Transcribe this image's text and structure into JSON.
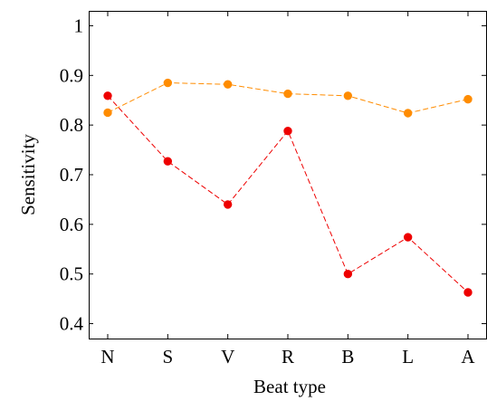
{
  "chart_data": {
    "type": "line",
    "xlabel": "Beat type",
    "ylabel": "Sensitivity",
    "categories": [
      "N",
      "S",
      "V",
      "R",
      "B",
      "L",
      "A"
    ],
    "ylim": [
      0.37,
      1.03
    ],
    "yticks": [
      0.4,
      0.5,
      0.6,
      0.7,
      0.8,
      0.9,
      1
    ],
    "ytick_labels": [
      "0.4",
      "0.5",
      "0.6",
      "0.7",
      "0.8",
      "0.9",
      "1"
    ],
    "grid": false,
    "legend": "none",
    "series": [
      {
        "color": "#ff8c00",
        "style": "dashed",
        "marker": "circle",
        "values": [
          0.825,
          0.885,
          0.882,
          0.863,
          0.859,
          0.824,
          0.852
        ]
      },
      {
        "color": "#ee0000",
        "style": "dashed",
        "marker": "circle",
        "values": [
          0.859,
          0.727,
          0.64,
          0.788,
          0.5,
          0.574,
          0.463
        ]
      }
    ]
  }
}
